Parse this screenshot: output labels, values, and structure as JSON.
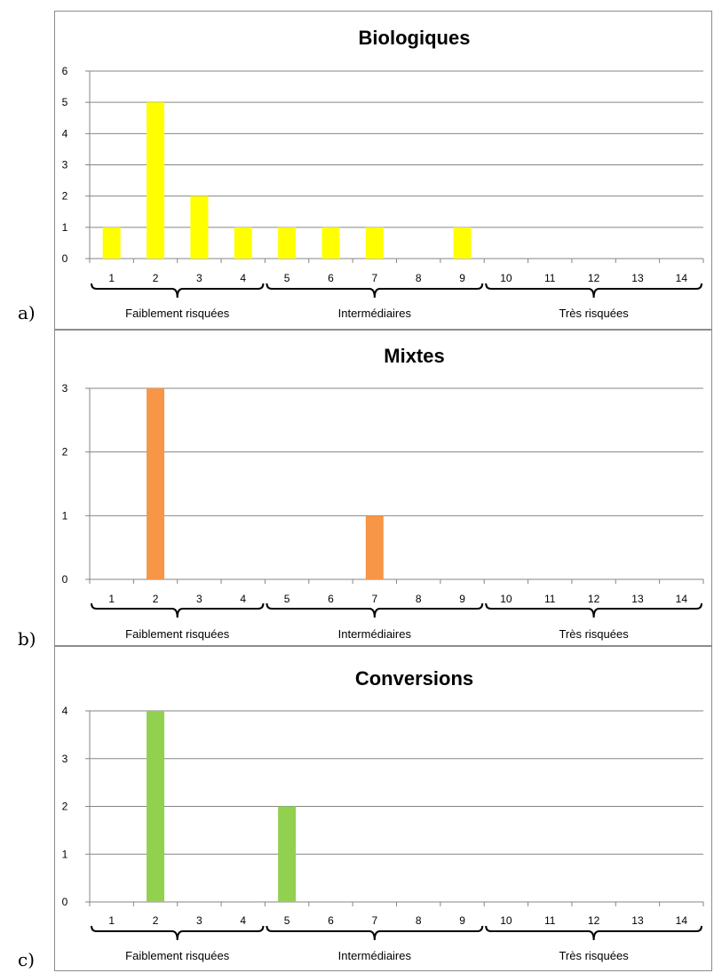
{
  "chart_data": [
    {
      "type": "bar",
      "panel_label": "a)",
      "title": "Biologiques",
      "categories": [
        "1",
        "2",
        "3",
        "4",
        "5",
        "6",
        "7",
        "8",
        "9",
        "10",
        "11",
        "12",
        "13",
        "14"
      ],
      "values": [
        1,
        5,
        2,
        1,
        1,
        1,
        1,
        0,
        1,
        0,
        0,
        0,
        0,
        0
      ],
      "ylim": [
        0,
        6
      ],
      "yticks": [
        0,
        1,
        2,
        3,
        4,
        5,
        6
      ],
      "color": "#ffff00",
      "groups": [
        {
          "label": "Faiblement risquées",
          "from": 1,
          "to": 4
        },
        {
          "label": "Intermédiaires",
          "from": 5,
          "to": 9
        },
        {
          "label": "Très risquées",
          "from": 10,
          "to": 14
        }
      ],
      "grid": true
    },
    {
      "type": "bar",
      "panel_label": "b)",
      "title": "Mixtes",
      "categories": [
        "1",
        "2",
        "3",
        "4",
        "5",
        "6",
        "7",
        "8",
        "9",
        "10",
        "11",
        "12",
        "13",
        "14"
      ],
      "values": [
        0,
        3,
        0,
        0,
        0,
        0,
        1,
        0,
        0,
        0,
        0,
        0,
        0,
        0
      ],
      "ylim": [
        0,
        3
      ],
      "yticks": [
        0,
        1,
        2,
        3
      ],
      "color": "#f79646",
      "groups": [
        {
          "label": "Faiblement risquées",
          "from": 1,
          "to": 4
        },
        {
          "label": "Intermédiaires",
          "from": 5,
          "to": 9
        },
        {
          "label": "Très risquées",
          "from": 10,
          "to": 14
        }
      ],
      "grid": true
    },
    {
      "type": "bar",
      "panel_label": "c)",
      "title": "Conversions",
      "categories": [
        "1",
        "2",
        "3",
        "4",
        "5",
        "6",
        "7",
        "8",
        "9",
        "10",
        "11",
        "12",
        "13",
        "14"
      ],
      "values": [
        0,
        4,
        0,
        0,
        2,
        0,
        0,
        0,
        0,
        0,
        0,
        0,
        0,
        0
      ],
      "ylim": [
        0,
        4
      ],
      "yticks": [
        0,
        1,
        2,
        3,
        4
      ],
      "color": "#92d050",
      "groups": [
        {
          "label": "Faiblement risquées",
          "from": 1,
          "to": 4
        },
        {
          "label": "Intermédiaires",
          "from": 5,
          "to": 9
        },
        {
          "label": "Très risquées",
          "from": 10,
          "to": 14
        }
      ],
      "grid": true
    }
  ]
}
